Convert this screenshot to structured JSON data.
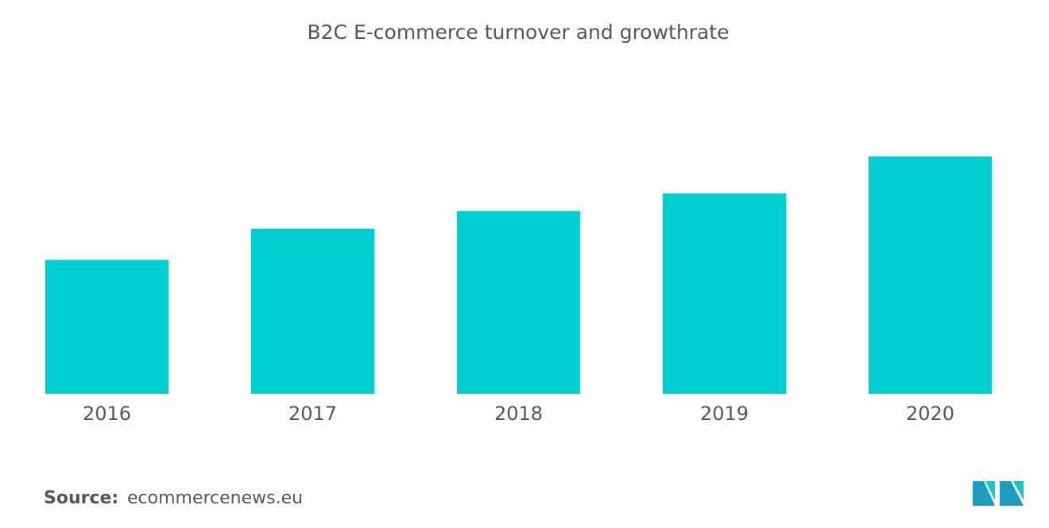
{
  "chart_data": {
    "type": "bar",
    "title": "B2C E-commerce turnover and growthrate",
    "categories": [
      "2016",
      "2017",
      "2018",
      "2019",
      "2020"
    ],
    "values": [
      167,
      206,
      228,
      250,
      296
    ],
    "color": "#00ced1",
    "ylim": [
      0,
      300
    ]
  },
  "footer": {
    "source_label": "Source:",
    "source": "ecommercenews.eu"
  }
}
